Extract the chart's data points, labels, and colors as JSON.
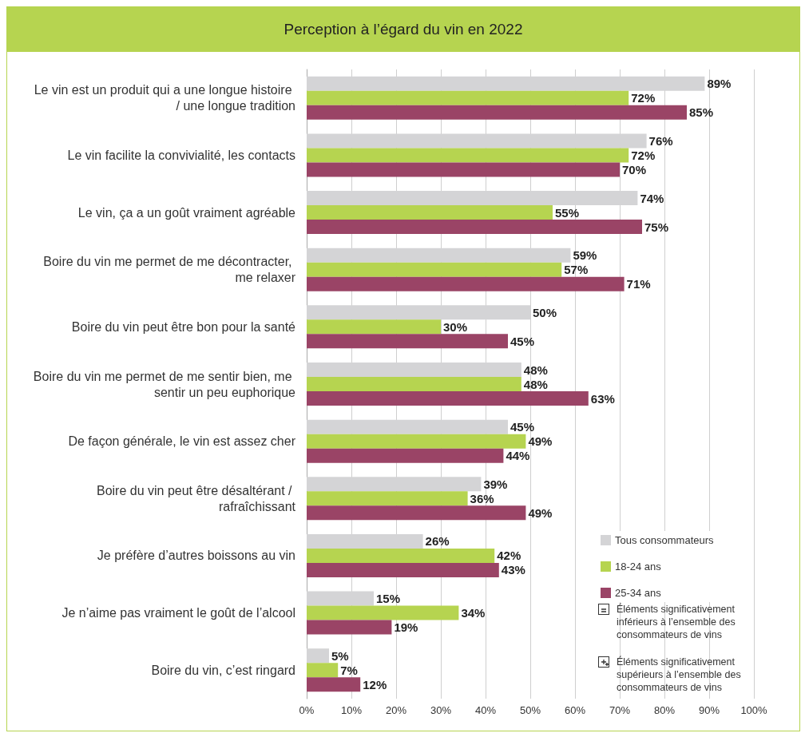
{
  "chart_data": {
    "type": "bar",
    "orientation": "horizontal",
    "title": "Perception à l’égard du vin en 2022",
    "categories": [
      "Le vin est un produit qui a une longue histoire / une longue tradition",
      "Le vin facilite la convivialité, les contacts",
      "Le vin, ça a un goût vraiment agréable",
      "Boire du vin me permet de me décontracter, me relaxer",
      "Boire du vin peut être bon pour la santé",
      "Boire du vin me permet de me sentir bien, me sentir un peu euphorique",
      "De façon générale, le vin est assez cher",
      "Boire du vin peut être désaltérant / rafraîchissant",
      "Je préfère d’autres boissons au vin",
      "Je n’aime pas vraiment le goût de l’alcool",
      "Boire du vin, c’est ringard"
    ],
    "series": [
      {
        "name": "Tous consommateurs",
        "color": "#d4d4d6",
        "values": [
          89,
          76,
          74,
          59,
          50,
          48,
          45,
          39,
          26,
          15,
          5
        ],
        "value_labels": [
          "89%",
          "76%",
          "74%",
          "59%",
          "50%",
          "48%",
          "45%",
          "39%",
          "26%",
          "15%",
          "5%"
        ]
      },
      {
        "name": "18-24 ans",
        "color": "#b6d450",
        "values": [
          72,
          72,
          55,
          57,
          30,
          48,
          49,
          36,
          42,
          34,
          7
        ],
        "value_labels": [
          "72%",
          "72%",
          "55%",
          "57%",
          "30%",
          "48%",
          "49%",
          "36%",
          "42%",
          "34%",
          "7%"
        ]
      },
      {
        "name": "25-34 ans",
        "color": "#9a4466",
        "values": [
          85,
          70,
          75,
          71,
          45,
          63,
          44,
          49,
          43,
          19,
          12
        ],
        "value_labels": [
          "85%",
          "70%",
          "75%",
          "71%",
          "45%",
          "63%",
          "44%",
          "49%",
          "43%",
          "19%",
          "12%"
        ]
      }
    ],
    "xlim": [
      0,
      100
    ],
    "xticks": [
      {
        "value": 0,
        "label": "0%"
      },
      {
        "value": 10,
        "label": "10%"
      },
      {
        "value": 20,
        "label": "20%"
      },
      {
        "value": 30,
        "label": "30%"
      },
      {
        "value": 40,
        "label": "40%"
      },
      {
        "value": 50,
        "label": "50%"
      },
      {
        "value": 60,
        "label": "60%"
      },
      {
        "value": 70,
        "label": "70%"
      },
      {
        "value": 80,
        "label": "80%"
      },
      {
        "value": 90,
        "label": "90%"
      },
      {
        "value": 100,
        "label": "100%"
      }
    ],
    "grid": "x",
    "legend": "right",
    "annotations": [
      "Éléments significativement inférieurs à l’ensemble des consommateurs de vins",
      "Éléments significativement supérieurs à l’ensemble des consommateurs de vins"
    ]
  }
}
